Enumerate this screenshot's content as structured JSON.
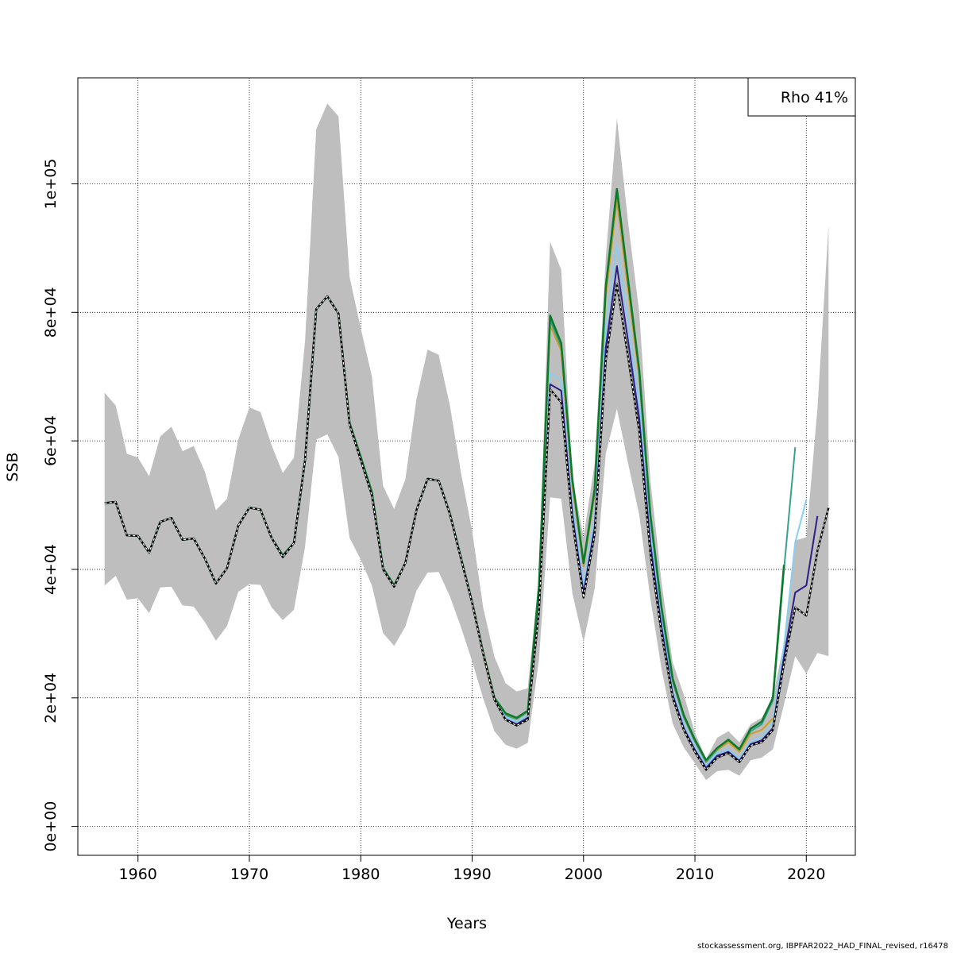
{
  "chart_data": {
    "type": "line",
    "title": "",
    "xlabel": "Years",
    "ylabel": "SSB",
    "xlim": [
      1954.6,
      2024.4
    ],
    "ylim": [
      -4500,
      116500
    ],
    "x_ticks": [
      1960,
      1970,
      1980,
      1990,
      2000,
      2010,
      2020
    ],
    "x_tick_labels": [
      "1960",
      "1970",
      "1980",
      "1990",
      "2000",
      "2010",
      "2020"
    ],
    "y_ticks": [
      0,
      20000,
      40000,
      60000,
      80000,
      100000
    ],
    "y_tick_labels": [
      "0e+00",
      "2e+04",
      "4e+04",
      "6e+04",
      "8e+04",
      "1e+05"
    ],
    "grid": true,
    "legend": {
      "position": "top-right",
      "text": "Rho 41%"
    },
    "footer": "stockassessment.org, IBPFAR2022_HAD_FINAL_revised, r16478",
    "colors": {
      "band": "#bebebe",
      "base": "#000000",
      "peel1": "#2a1f8a",
      "peel2": "#87cef0",
      "peel3": "#3aa08a",
      "peel4": "#0c7a2c",
      "peel5": "#c9a028"
    },
    "band": {
      "name": "Confidence interval",
      "x": [
        1957,
        1958,
        1959,
        1960,
        1961,
        1962,
        1963,
        1964,
        1965,
        1966,
        1967,
        1968,
        1969,
        1970,
        1971,
        1972,
        1973,
        1974,
        1975,
        1976,
        1977,
        1978,
        1979,
        1980,
        1981,
        1982,
        1983,
        1984,
        1985,
        1986,
        1987,
        1988,
        1989,
        1990,
        1991,
        1992,
        1993,
        1994,
        1995,
        1996,
        1997,
        1998,
        1999,
        2000,
        2001,
        2002,
        2003,
        2004,
        2005,
        2006,
        2007,
        2008,
        2009,
        2010,
        2011,
        2012,
        2013,
        2014,
        2015,
        2016,
        2017,
        2018,
        2019,
        2020,
        2021,
        2022
      ],
      "upper": [
        67500,
        65500,
        58000,
        57400,
        54500,
        60700,
        62200,
        58400,
        59200,
        55200,
        49200,
        51000,
        60200,
        65200,
        64500,
        59300,
        55000,
        57400,
        75500,
        108500,
        112500,
        110500,
        85500,
        77500,
        70000,
        53000,
        49400,
        54000,
        66500,
        74200,
        73400,
        65500,
        55000,
        46000,
        34000,
        26400,
        22300,
        21000,
        21500,
        39000,
        91000,
        86600,
        54200,
        45000,
        56500,
        88500,
        110200,
        94000,
        80000,
        54000,
        38000,
        25500,
        20500,
        14600,
        10500,
        13800,
        14800,
        13100,
        15900,
        16900,
        20200,
        28500,
        44500,
        45000,
        65000,
        93500
      ]
    },
    "band_lower": [
      37500,
      39000,
      35300,
      35500,
      33200,
      37200,
      37300,
      34400,
      34200,
      31800,
      28900,
      31200,
      36500,
      37700,
      37600,
      34100,
      32100,
      33700,
      43500,
      60200,
      61000,
      57500,
      44900,
      41500,
      37500,
      30100,
      28100,
      31100,
      36700,
      39500,
      39600,
      35800,
      31000,
      25700,
      19900,
      14800,
      12700,
      12100,
      13000,
      26000,
      51200,
      51000,
      36300,
      28700,
      37000,
      58000,
      65000,
      56500,
      48500,
      35500,
      24500,
      16000,
      12300,
      9800,
      7200,
      8600,
      8800,
      7900,
      10300,
      10700,
      12000,
      19000,
      26500,
      23800,
      27000,
      26500
    ],
    "series": [
      {
        "name": "base",
        "x": [
          1957,
          1958,
          1959,
          1960,
          1961,
          1962,
          1963,
          1964,
          1965,
          1966,
          1967,
          1968,
          1969,
          1970,
          1971,
          1972,
          1973,
          1974,
          1975,
          1976,
          1977,
          1978,
          1979,
          1980,
          1981,
          1982,
          1983,
          1984,
          1985,
          1986,
          1987,
          1988,
          1989,
          1990,
          1991,
          1992,
          1993,
          1994,
          1995,
          1996,
          1997,
          1998,
          1999,
          2000,
          2001,
          2002,
          2003,
          2004,
          2005,
          2006,
          2007,
          2008,
          2009,
          2010,
          2011,
          2012,
          2013,
          2014,
          2015,
          2016,
          2017,
          2018,
          2019,
          2020,
          2021,
          2022
        ],
        "values": [
          50300,
          50500,
          45300,
          45200,
          42600,
          47400,
          48000,
          44600,
          44800,
          41700,
          37800,
          40200,
          46800,
          49600,
          49300,
          44900,
          41900,
          44100,
          57000,
          80500,
          82500,
          79800,
          62500,
          57000,
          51500,
          40000,
          37300,
          41000,
          49200,
          54100,
          53800,
          48600,
          41600,
          34800,
          26800,
          19700,
          16600,
          15700,
          16600,
          33500,
          68000,
          66000,
          47500,
          35600,
          45500,
          72500,
          84500,
          73000,
          61500,
          42500,
          30000,
          20000,
          15000,
          11600,
          8800,
          10700,
          11400,
          10000,
          12600,
          13100,
          15000,
          25300,
          34100,
          32800,
          42900,
          49600
        ]
      },
      {
        "name": "peel1",
        "x": [
          1957,
          1958,
          1959,
          1960,
          1961,
          1962,
          1963,
          1964,
          1965,
          1966,
          1967,
          1968,
          1969,
          1970,
          1971,
          1972,
          1973,
          1974,
          1975,
          1976,
          1977,
          1978,
          1979,
          1980,
          1981,
          1982,
          1983,
          1984,
          1985,
          1986,
          1987,
          1988,
          1989,
          1990,
          1991,
          1992,
          1993,
          1994,
          1995,
          1996,
          1997,
          1998,
          1999,
          2000,
          2001,
          2002,
          2003,
          2004,
          2005,
          2006,
          2007,
          2008,
          2009,
          2010,
          2011,
          2012,
          2013,
          2014,
          2015,
          2016,
          2017,
          2018,
          2019,
          2020,
          2021
        ],
        "values": [
          50300,
          50500,
          45300,
          45200,
          42600,
          47400,
          48000,
          44600,
          44800,
          41700,
          37800,
          40200,
          46800,
          49600,
          49300,
          44900,
          42000,
          44100,
          57000,
          80500,
          82500,
          79800,
          62500,
          57000,
          51500,
          40000,
          37300,
          41000,
          49200,
          54100,
          53800,
          48600,
          41600,
          34800,
          26800,
          19700,
          16700,
          15900,
          16900,
          33800,
          68800,
          67800,
          48500,
          36300,
          46500,
          74500,
          87200,
          75500,
          63500,
          44000,
          31000,
          20500,
          15300,
          11900,
          9100,
          11000,
          11600,
          10200,
          12800,
          13400,
          15300,
          26400,
          36400,
          37500,
          48300
        ]
      },
      {
        "name": "peel2",
        "x": [
          1957,
          1958,
          1959,
          1960,
          1961,
          1962,
          1963,
          1964,
          1965,
          1966,
          1967,
          1968,
          1969,
          1970,
          1971,
          1972,
          1973,
          1974,
          1975,
          1976,
          1977,
          1978,
          1979,
          1980,
          1981,
          1982,
          1983,
          1984,
          1985,
          1986,
          1987,
          1988,
          1989,
          1990,
          1991,
          1992,
          1993,
          1994,
          1995,
          1996,
          1997,
          1998,
          1999,
          2000,
          2001,
          2002,
          2003,
          2004,
          2005,
          2006,
          2007,
          2008,
          2009,
          2010,
          2011,
          2012,
          2013,
          2014,
          2015,
          2016,
          2017,
          2018,
          2019,
          2020
        ],
        "values": [
          50300,
          50500,
          45300,
          45200,
          42600,
          47400,
          48000,
          44600,
          44800,
          41700,
          37800,
          40200,
          46800,
          49600,
          49300,
          44900,
          42000,
          44100,
          57000,
          80500,
          82500,
          79800,
          62500,
          57000,
          51500,
          40000,
          37300,
          41000,
          49200,
          54100,
          53800,
          48600,
          41600,
          34800,
          26800,
          19800,
          17000,
          16300,
          17300,
          35000,
          70500,
          69500,
          50000,
          37500,
          48000,
          77500,
          90500,
          78500,
          66000,
          45500,
          32000,
          21000,
          15800,
          12300,
          9400,
          11400,
          12000,
          10500,
          13200,
          13900,
          16200,
          28000,
          44200,
          50800
        ]
      },
      {
        "name": "peel3",
        "x": [
          1957,
          1958,
          1959,
          1960,
          1961,
          1962,
          1963,
          1964,
          1965,
          1966,
          1967,
          1968,
          1969,
          1970,
          1971,
          1972,
          1973,
          1974,
          1975,
          1976,
          1977,
          1978,
          1979,
          1980,
          1981,
          1982,
          1983,
          1984,
          1985,
          1986,
          1987,
          1988,
          1989,
          1990,
          1991,
          1992,
          1993,
          1994,
          1995,
          1996,
          1997,
          1998,
          1999,
          2000,
          2001,
          2002,
          2003,
          2004,
          2005,
          2006,
          2007,
          2008,
          2009,
          2010,
          2011,
          2012,
          2013,
          2014,
          2015,
          2016,
          2017,
          2018,
          2019
        ],
        "values": [
          50300,
          50500,
          45300,
          45200,
          42600,
          47400,
          48000,
          44600,
          44800,
          41700,
          37800,
          40200,
          46800,
          49600,
          49300,
          44900,
          42100,
          44100,
          57000,
          80500,
          82500,
          79800,
          62500,
          57000,
          51500,
          40100,
          37400,
          41000,
          49200,
          54100,
          53800,
          48600,
          41600,
          34800,
          26900,
          19900,
          17300,
          16700,
          17800,
          37000,
          78800,
          74500,
          53500,
          40500,
          52000,
          83500,
          98500,
          84500,
          70500,
          48000,
          33500,
          22500,
          17000,
          13200,
          10000,
          11900,
          13100,
          11700,
          14800,
          15900,
          19600,
          40000,
          59000
        ]
      },
      {
        "name": "peel4",
        "x": [
          1957,
          1958,
          1959,
          1960,
          1961,
          1962,
          1963,
          1964,
          1965,
          1966,
          1967,
          1968,
          1969,
          1970,
          1971,
          1972,
          1973,
          1974,
          1975,
          1976,
          1977,
          1978,
          1979,
          1980,
          1981,
          1982,
          1983,
          1984,
          1985,
          1986,
          1987,
          1988,
          1989,
          1990,
          1991,
          1992,
          1993,
          1994,
          1995,
          1996,
          1997,
          1998,
          1999,
          2000,
          2001,
          2002,
          2003,
          2004,
          2005,
          2006,
          2007,
          2008,
          2009,
          2010,
          2011,
          2012,
          2013,
          2014,
          2015,
          2016,
          2017,
          2018
        ],
        "values": [
          50300,
          50500,
          45300,
          45200,
          42600,
          47400,
          48000,
          44600,
          44800,
          41700,
          37800,
          40200,
          46800,
          49600,
          49300,
          44900,
          42200,
          44100,
          57000,
          80500,
          82500,
          79800,
          62800,
          57500,
          52000,
          40200,
          37500,
          41000,
          49200,
          54100,
          53800,
          48700,
          41800,
          34900,
          27000,
          20000,
          17600,
          16900,
          18000,
          37500,
          79500,
          75200,
          54000,
          41000,
          52500,
          84000,
          99200,
          85000,
          71000,
          48500,
          34000,
          23000,
          17300,
          13500,
          10300,
          12200,
          13500,
          12000,
          15200,
          16300,
          20000,
          40700
        ]
      },
      {
        "name": "peel5",
        "x": [
          1957,
          1958,
          1959,
          1960,
          1961,
          1962,
          1963,
          1964,
          1965,
          1966,
          1967,
          1968,
          1969,
          1970,
          1971,
          1972,
          1973,
          1974,
          1975,
          1976,
          1977,
          1978,
          1979,
          1980,
          1981,
          1982,
          1983,
          1984,
          1985,
          1986,
          1987,
          1988,
          1989,
          1990,
          1991,
          1992,
          1993,
          1994,
          1995,
          1996,
          1997,
          1998,
          1999,
          2000,
          2001,
          2002,
          2003,
          2004,
          2005,
          2006,
          2007,
          2008,
          2009,
          2010,
          2011,
          2012,
          2013,
          2014,
          2015,
          2016,
          2017
        ],
        "values": [
          50300,
          50500,
          45300,
          45200,
          42600,
          47400,
          48000,
          44600,
          44800,
          41700,
          37800,
          40200,
          46800,
          49600,
          49300,
          44900,
          42200,
          44100,
          57000,
          80500,
          82500,
          79800,
          62800,
          57500,
          52000,
          40200,
          37500,
          41000,
          49200,
          54100,
          53800,
          48700,
          41800,
          34900,
          27000,
          20000,
          17500,
          16800,
          17900,
          37000,
          78000,
          74000,
          53000,
          40500,
          51800,
          82500,
          97500,
          83500,
          70000,
          48000,
          34000,
          22800,
          17200,
          13400,
          10200,
          12000,
          13100,
          11600,
          14400,
          15000,
          16800
        ]
      }
    ]
  }
}
